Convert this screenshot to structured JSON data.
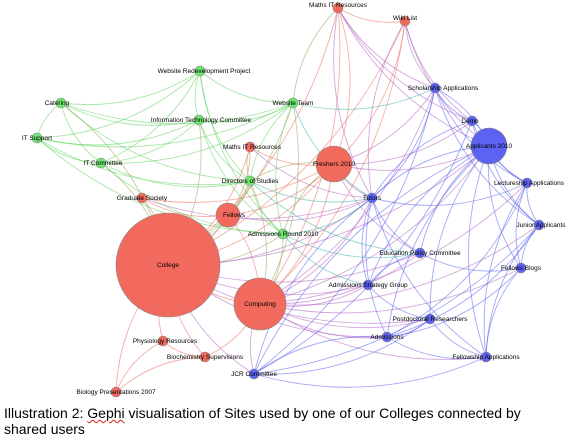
{
  "colors": {
    "red": "#f26a5e",
    "green": "#6ee86e",
    "blue": "#5c62f2",
    "edge_green": "#5fd35f",
    "edge_blue": "#5a5ef0",
    "edge_red": "#ef6a5f",
    "edge_purple": "#b060c0",
    "edge_teal": "#3ab3a8"
  },
  "nodes": [
    {
      "id": "maths-it-resources-top",
      "label": "Maths IT Resources",
      "group": "red",
      "size": "tiny"
    },
    {
      "id": "wiki-list",
      "label": "Wiki List",
      "group": "red",
      "size": "tiny"
    },
    {
      "id": "website-redevelopment-project",
      "label": "Website Redevelopment Project",
      "group": "green",
      "size": "tiny"
    },
    {
      "id": "scholarship-applications",
      "label": "Scholarship Applications",
      "group": "blue",
      "size": "tiny"
    },
    {
      "id": "catering",
      "label": "Catering",
      "group": "green",
      "size": "tiny"
    },
    {
      "id": "website-team",
      "label": "Website Team",
      "group": "green",
      "size": "tiny"
    },
    {
      "id": "information-technology-committee",
      "label": "Information Technology Committee",
      "group": "green",
      "size": "tiny"
    },
    {
      "id": "demo",
      "label": "Demo",
      "group": "blue",
      "size": "tiny"
    },
    {
      "id": "it-support",
      "label": "IT Support",
      "group": "green",
      "size": "tiny"
    },
    {
      "id": "applicants-2010",
      "label": "Applicants 2010",
      "group": "blue",
      "size": "large"
    },
    {
      "id": "maths-it-resources",
      "label": "Maths IT Resources",
      "group": "red",
      "size": "tiny"
    },
    {
      "id": "freshers-2010",
      "label": "Freshers 2010",
      "group": "red",
      "size": "large"
    },
    {
      "id": "it-committee",
      "label": "IT Committee",
      "group": "green",
      "size": "tiny"
    },
    {
      "id": "directors-of-studies",
      "label": "Directors of Studies",
      "group": "green",
      "size": "tiny"
    },
    {
      "id": "lectureship-applications",
      "label": "Lectureship Applications",
      "group": "blue",
      "size": "tiny"
    },
    {
      "id": "graduate-society",
      "label": "Graduate Society",
      "group": "red",
      "size": "tiny"
    },
    {
      "id": "tutors",
      "label": "Tutors",
      "group": "blue",
      "size": "tiny"
    },
    {
      "id": "fellows",
      "label": "Fellows",
      "group": "red",
      "size": "medium"
    },
    {
      "id": "junior-applicants",
      "label": "Junior Applicants",
      "group": "blue",
      "size": "tiny"
    },
    {
      "id": "admissions-round-2010",
      "label": "Admissions Round 2010",
      "group": "green",
      "size": "tiny"
    },
    {
      "id": "education-policy-committee",
      "label": "Education Policy Committee",
      "group": "blue",
      "size": "tiny"
    },
    {
      "id": "college",
      "label": "College",
      "group": "red",
      "size": "huge"
    },
    {
      "id": "fellows-blogs",
      "label": "Fellows Blogs",
      "group": "blue",
      "size": "tiny"
    },
    {
      "id": "admissions-strategy-group",
      "label": "Admissions Strategy Group",
      "group": "blue",
      "size": "tiny"
    },
    {
      "id": "computing",
      "label": "Computing",
      "group": "red",
      "size": "xlarge"
    },
    {
      "id": "postdoctoral-researchers",
      "label": "Postdoctoral Researchers",
      "group": "blue",
      "size": "tiny"
    },
    {
      "id": "physiology-resources",
      "label": "Physiology Resources",
      "group": "red",
      "size": "tiny"
    },
    {
      "id": "admissions",
      "label": "Admissions",
      "group": "blue",
      "size": "tiny"
    },
    {
      "id": "biochemistry-supervisions",
      "label": "Biochemistry Supervisions",
      "group": "red",
      "size": "tiny"
    },
    {
      "id": "fellowship-applications",
      "label": "Fellowship Applications",
      "group": "blue",
      "size": "tiny"
    },
    {
      "id": "jcr-committee",
      "label": "JCR Committee",
      "group": "blue",
      "size": "tiny"
    },
    {
      "id": "biology-presentations-2007",
      "label": "Biology Presentations 2007",
      "group": "red",
      "size": "tiny"
    }
  ],
  "edges": [
    [
      "college",
      "computing"
    ],
    [
      "college",
      "fellows"
    ],
    [
      "college",
      "freshers-2010"
    ],
    [
      "college",
      "graduate-society"
    ],
    [
      "college",
      "physiology-resources"
    ],
    [
      "college",
      "biochemistry-supervisions"
    ],
    [
      "college",
      "biology-presentations-2007"
    ],
    [
      "college",
      "maths-it-resources"
    ],
    [
      "college",
      "directors-of-studies"
    ],
    [
      "college",
      "admissions-round-2010"
    ],
    [
      "college",
      "tutors"
    ],
    [
      "college",
      "education-policy-committee"
    ],
    [
      "college",
      "admissions-strategy-group"
    ],
    [
      "college",
      "jcr-committee"
    ],
    [
      "college",
      "admissions"
    ],
    [
      "college",
      "it-committee"
    ],
    [
      "college",
      "catering"
    ],
    [
      "college",
      "information-technology-committee"
    ],
    [
      "college",
      "website-team"
    ],
    [
      "college",
      "wiki-list"
    ],
    [
      "college",
      "maths-it-resources-top"
    ],
    [
      "college",
      "applicants-2010"
    ],
    [
      "college",
      "postdoctoral-researchers"
    ],
    [
      "computing",
      "fellows"
    ],
    [
      "computing",
      "freshers-2010"
    ],
    [
      "computing",
      "tutors"
    ],
    [
      "computing",
      "admissions-strategy-group"
    ],
    [
      "computing",
      "education-policy-committee"
    ],
    [
      "computing",
      "admissions"
    ],
    [
      "computing",
      "jcr-committee"
    ],
    [
      "computing",
      "applicants-2010"
    ],
    [
      "computing",
      "lectureship-applications"
    ],
    [
      "computing",
      "junior-applicants"
    ],
    [
      "computing",
      "fellows-blogs"
    ],
    [
      "computing",
      "postdoctoral-researchers"
    ],
    [
      "computing",
      "fellowship-applications"
    ],
    [
      "computing",
      "website-team"
    ],
    [
      "computing",
      "directors-of-studies"
    ],
    [
      "computing",
      "admissions-round-2010"
    ],
    [
      "computing",
      "maths-it-resources-top"
    ],
    [
      "computing",
      "wiki-list"
    ],
    [
      "computing",
      "scholarship-applications"
    ],
    [
      "fellows",
      "freshers-2010"
    ],
    [
      "fellows",
      "directors-of-studies"
    ],
    [
      "fellows",
      "tutors"
    ],
    [
      "fellows",
      "maths-it-resources"
    ],
    [
      "freshers-2010",
      "tutors"
    ],
    [
      "freshers-2010",
      "applicants-2010"
    ],
    [
      "freshers-2010",
      "admissions-round-2010"
    ],
    [
      "freshers-2010",
      "directors-of-studies"
    ],
    [
      "freshers-2010",
      "education-policy-committee"
    ],
    [
      "freshers-2010",
      "wiki-list"
    ],
    [
      "freshers-2010",
      "maths-it-resources-top"
    ],
    [
      "freshers-2010",
      "scholarship-applications"
    ],
    [
      "freshers-2010",
      "demo"
    ],
    [
      "applicants-2010",
      "tutors"
    ],
    [
      "applicants-2010",
      "admissions"
    ],
    [
      "applicants-2010",
      "lectureship-applications"
    ],
    [
      "applicants-2010",
      "junior-applicants"
    ],
    [
      "applicants-2010",
      "fellows-blogs"
    ],
    [
      "applicants-2010",
      "scholarship-applications"
    ],
    [
      "applicants-2010",
      "demo"
    ],
    [
      "applicants-2010",
      "admissions-strategy-group"
    ],
    [
      "applicants-2010",
      "education-policy-committee"
    ],
    [
      "applicants-2010",
      "postdoctoral-researchers"
    ],
    [
      "applicants-2010",
      "fellowship-applications"
    ],
    [
      "applicants-2010",
      "jcr-committee"
    ],
    [
      "tutors",
      "admissions"
    ],
    [
      "tutors",
      "jcr-committee"
    ],
    [
      "tutors",
      "education-policy-committee"
    ],
    [
      "tutors",
      "admissions-strategy-group"
    ],
    [
      "tutors",
      "scholarship-applications"
    ],
    [
      "tutors",
      "lectureship-applications"
    ],
    [
      "tutors",
      "fellowship-applications"
    ],
    [
      "admissions",
      "jcr-committee"
    ],
    [
      "admissions",
      "fellowship-applications"
    ],
    [
      "admissions",
      "postdoctoral-researchers"
    ],
    [
      "admissions",
      "junior-applicants"
    ],
    [
      "admissions",
      "fellows-blogs"
    ],
    [
      "admissions",
      "lectureship-applications"
    ],
    [
      "jcr-committee",
      "fellowship-applications"
    ],
    [
      "jcr-committee",
      "postdoctoral-researchers"
    ],
    [
      "jcr-committee",
      "junior-applicants"
    ],
    [
      "jcr-committee",
      "scholarship-applications"
    ],
    [
      "jcr-committee",
      "demo"
    ],
    [
      "scholarship-applications",
      "demo"
    ],
    [
      "scholarship-applications",
      "lectureship-applications"
    ],
    [
      "scholarship-applications",
      "junior-applicants"
    ],
    [
      "lectureship-applications",
      "junior-applicants"
    ],
    [
      "lectureship-applications",
      "fellows-blogs"
    ],
    [
      "lectureship-applications",
      "fellowship-applications"
    ],
    [
      "junior-applicants",
      "fellows-blogs"
    ],
    [
      "junior-applicants",
      "fellowship-applications"
    ],
    [
      "fellows-blogs",
      "fellowship-applications"
    ],
    [
      "postdoctoral-researchers",
      "fellowship-applications"
    ],
    [
      "education-policy-committee",
      "admissions-strategy-group"
    ],
    [
      "education-policy-committee",
      "fellows-blogs"
    ],
    [
      "admissions-strategy-group",
      "postdoctoral-researchers"
    ],
    [
      "demo",
      "lectureship-applications"
    ],
    [
      "demo",
      "junior-applicants"
    ],
    [
      "demo",
      "tutors"
    ],
    [
      "catering",
      "it-support"
    ],
    [
      "catering",
      "it-committee"
    ],
    [
      "catering",
      "website-redevelopment-project"
    ],
    [
      "catering",
      "information-technology-committee"
    ],
    [
      "catering",
      "website-team"
    ],
    [
      "catering",
      "directors-of-studies"
    ],
    [
      "it-support",
      "it-committee"
    ],
    [
      "it-support",
      "website-redevelopment-project"
    ],
    [
      "it-support",
      "information-technology-committee"
    ],
    [
      "it-support",
      "website-team"
    ],
    [
      "it-support",
      "directors-of-studies"
    ],
    [
      "it-support",
      "admissions-round-2010"
    ],
    [
      "it-committee",
      "website-redevelopment-project"
    ],
    [
      "it-committee",
      "information-technology-committee"
    ],
    [
      "it-committee",
      "website-team"
    ],
    [
      "it-committee",
      "directors-of-studies"
    ],
    [
      "it-committee",
      "admissions-round-2010"
    ],
    [
      "website-redevelopment-project",
      "information-technology-committee"
    ],
    [
      "website-redevelopment-project",
      "website-team"
    ],
    [
      "website-redevelopment-project",
      "directors-of-studies"
    ],
    [
      "website-redevelopment-project",
      "admissions-round-2010"
    ],
    [
      "information-technology-committee",
      "website-team"
    ],
    [
      "information-technology-committee",
      "directors-of-studies"
    ],
    [
      "information-technology-committee",
      "admissions-round-2010"
    ],
    [
      "website-team",
      "directors-of-studies"
    ],
    [
      "website-team",
      "admissions-round-2010"
    ],
    [
      "website-team",
      "tutors"
    ],
    [
      "website-team",
      "scholarship-applications"
    ],
    [
      "directors-of-studies",
      "admissions-round-2010"
    ],
    [
      "directors-of-studies",
      "tutors"
    ],
    [
      "directors-of-studies",
      "education-policy-committee"
    ],
    [
      "admissions-round-2010",
      "tutors"
    ],
    [
      "admissions-round-2010",
      "education-policy-committee"
    ],
    [
      "admissions-round-2010",
      "admissions-strategy-group"
    ],
    [
      "maths-it-resources-top",
      "wiki-list"
    ],
    [
      "maths-it-resources-top",
      "scholarship-applications"
    ],
    [
      "maths-it-resources-top",
      "website-team"
    ],
    [
      "maths-it-resources-top",
      "tutors"
    ],
    [
      "maths-it-resources-top",
      "demo"
    ],
    [
      "maths-it-resources-top",
      "applicants-2010"
    ],
    [
      "wiki-list",
      "scholarship-applications"
    ],
    [
      "wiki-list",
      "applicants-2010"
    ],
    [
      "wiki-list",
      "tutors"
    ],
    [
      "wiki-list",
      "demo"
    ],
    [
      "graduate-society",
      "fellows"
    ],
    [
      "graduate-society",
      "freshers-2010"
    ],
    [
      "graduate-society",
      "tutors"
    ],
    [
      "physiology-resources",
      "biochemistry-supervisions"
    ],
    [
      "physiology-resources",
      "biology-presentations-2007"
    ],
    [
      "biochemistry-supervisions",
      "biology-presentations-2007"
    ],
    [
      "biochemistry-supervisions",
      "computing"
    ],
    [
      "maths-it-resources",
      "directors-of-studies"
    ],
    [
      "maths-it-resources",
      "freshers-2010"
    ],
    [
      "maths-it-resources",
      "tutors"
    ]
  ],
  "caption": {
    "prefix": "Illustration 2: ",
    "gephi": "Gephi",
    "rest": " visualisation of Sites used by one of our Colleges connected by shared users"
  }
}
